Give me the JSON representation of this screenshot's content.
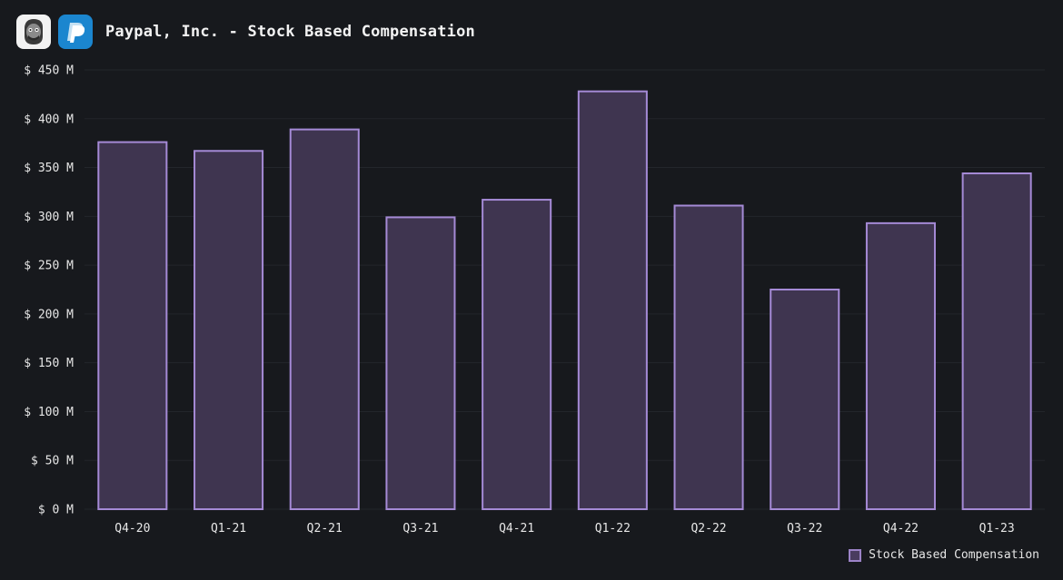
{
  "header": {
    "title": "Paypal, Inc. - Stock Based Compensation",
    "avatar_icon": "cartoon-face-avatar",
    "logo_icon": "paypal-logo"
  },
  "colors": {
    "background": "#17191d",
    "bar_fill": "#3f3550",
    "bar_stroke": "#a58ad6",
    "grid": "#23262b",
    "text": "#e6e6e6"
  },
  "legend": {
    "label": "Stock Based Compensation",
    "placement": "bottom-right"
  },
  "chart_data": {
    "type": "bar",
    "title": "Paypal, Inc. - Stock Based Compensation",
    "xlabel": "",
    "ylabel": "",
    "categories": [
      "Q4-20",
      "Q1-21",
      "Q2-21",
      "Q3-21",
      "Q4-21",
      "Q1-22",
      "Q2-22",
      "Q3-22",
      "Q4-22",
      "Q1-23"
    ],
    "series": [
      {
        "name": "Stock Based Compensation",
        "values": [
          376,
          367,
          389,
          299,
          317,
          428,
          311,
          225,
          293,
          344
        ]
      }
    ],
    "ylim": [
      0,
      450
    ],
    "yticks": [
      0,
      50,
      100,
      150,
      200,
      250,
      300,
      350,
      400,
      450
    ],
    "ytick_labels": [
      "$ 0 M",
      "$ 50 M",
      "$ 100 M",
      "$ 150 M",
      "$ 200 M",
      "$ 250 M",
      "$ 300 M",
      "$ 350 M",
      "$ 400 M",
      "$ 450 M"
    ],
    "grid": true,
    "legend_position": "bottom-right"
  }
}
